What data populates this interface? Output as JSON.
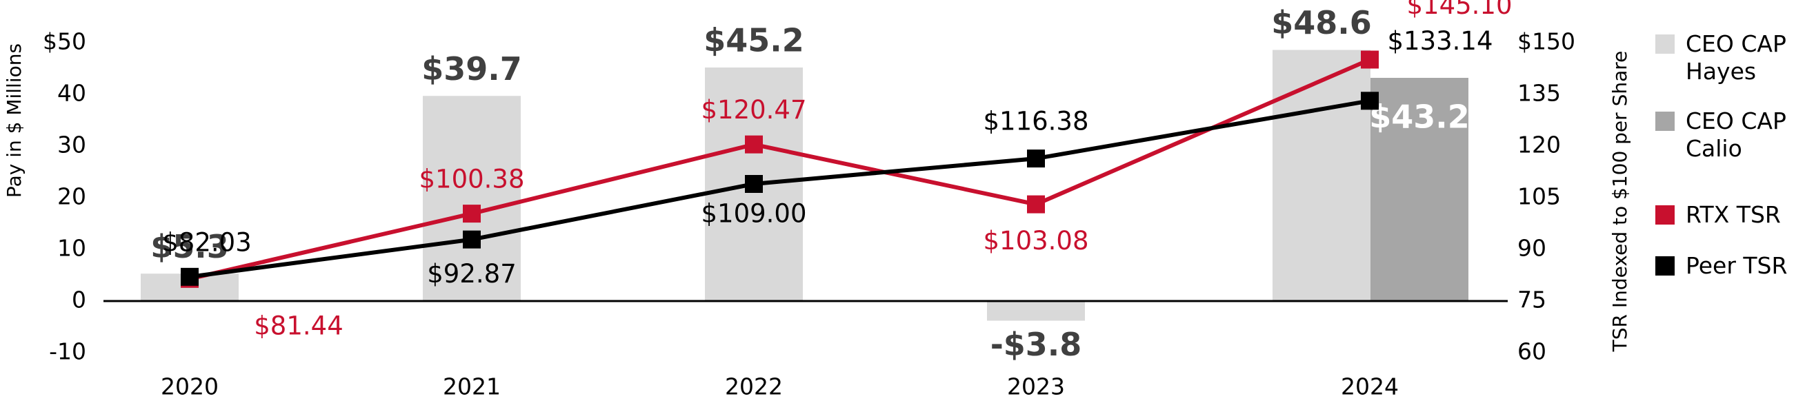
{
  "chart_data": {
    "type": "bar",
    "categories": [
      "2020",
      "2021",
      "2022",
      "2023",
      "2024"
    ],
    "y_label": "Pay in $ Millions",
    "y2_label": "TSR Indexed to $100 per Share",
    "ylim": [
      -10,
      50
    ],
    "yticks": [
      -10,
      0,
      10,
      20,
      30,
      40,
      {
        "value": 50,
        "label": "$50"
      }
    ],
    "y2lim": [
      60,
      150
    ],
    "y2ticks": [
      60,
      75,
      90,
      105,
      120,
      135,
      {
        "value": 150,
        "label": "$150"
      }
    ],
    "grid": false,
    "legend": "right",
    "series": [
      {
        "name": "CEO CAP Hayes",
        "type": "bar",
        "color": "#d9d9d9",
        "values": [
          5.3,
          39.7,
          45.2,
          -3.8,
          48.6
        ],
        "value_labels": [
          "$5.3",
          "$39.7",
          "$45.2",
          "-$3.8",
          "$48.6"
        ]
      },
      {
        "name": "CEO CAP Calio",
        "type": "bar",
        "color": "#a6a6a6",
        "values": [
          null,
          null,
          null,
          null,
          43.2
        ],
        "value_labels": [
          null,
          null,
          null,
          null,
          "$43.2"
        ]
      },
      {
        "name": "RTX TSR",
        "type": "line",
        "axis": "y2",
        "color": "#c8102e",
        "values": [
          81.44,
          100.38,
          120.47,
          103.08,
          145.1
        ],
        "value_labels": [
          "$81.44",
          "$100.38",
          "$120.47",
          "$103.08",
          "$145.10"
        ]
      },
      {
        "name": "Peer TSR",
        "type": "line",
        "axis": "y2",
        "color": "#000000",
        "values": [
          82.03,
          92.87,
          109.0,
          116.38,
          133.14
        ],
        "value_labels": [
          "$82.03",
          "$92.87",
          "$109.00",
          "$116.38",
          "$133.14"
        ]
      }
    ]
  }
}
